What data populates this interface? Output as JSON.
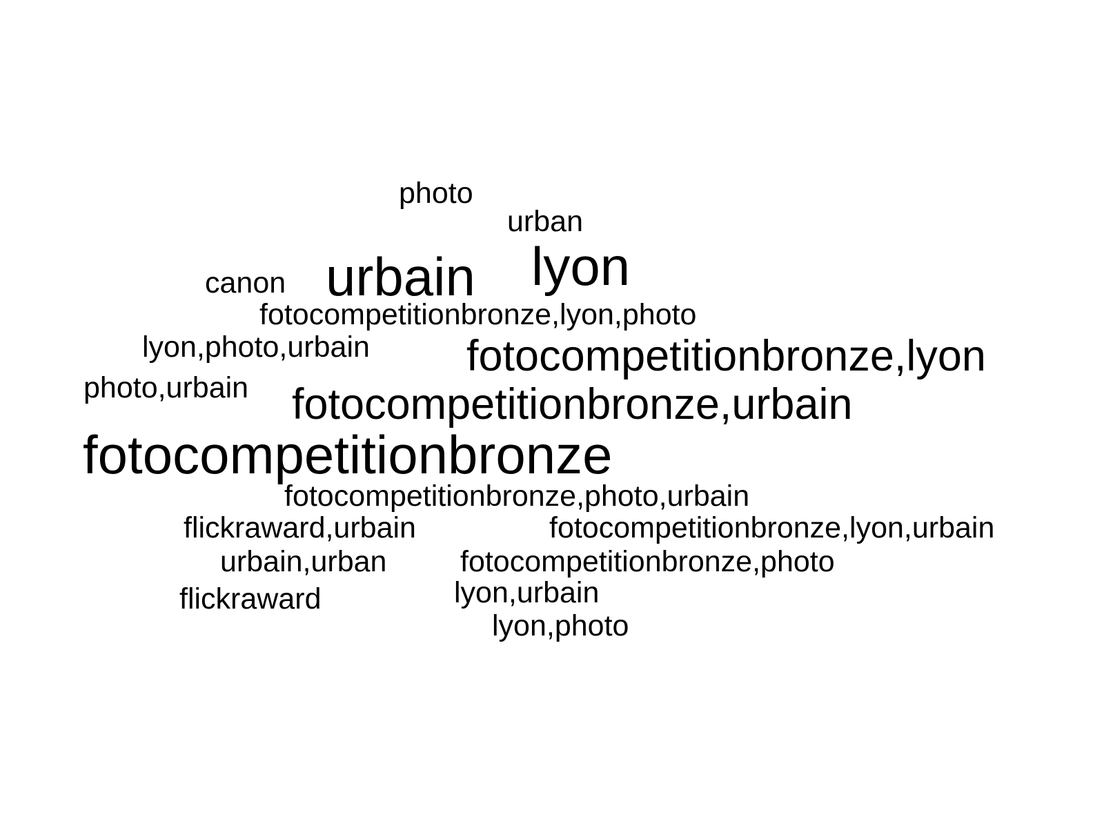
{
  "words": {
    "photo": "photo",
    "urban": "urban",
    "canon": "canon",
    "urbain": "urbain",
    "lyon": "lyon",
    "fotocompetitionbronze_lyon_photo": "fotocompetitionbronze,lyon,photo",
    "lyon_photo_urbain": "lyon,photo,urbain",
    "fotocompetitionbronze_lyon": "fotocompetitionbronze,lyon",
    "photo_urbain": "photo,urbain",
    "fotocompetitionbronze_urbain": "fotocompetitionbronze,urbain",
    "fotocompetitionbronze": "fotocompetitionbronze",
    "fotocompetitionbronze_photo_urbain": "fotocompetitionbronze,photo,urbain",
    "flickraward_urbain": "flickraward,urbain",
    "fotocompetitionbronze_lyon_urbain": "fotocompetitionbronze,lyon,urbain",
    "urbain_urban": "urbain,urban",
    "fotocompetitionbronze_photo": "fotocompetitionbronze,photo",
    "lyon_urbain": "lyon,urbain",
    "flickraward": "flickraward",
    "lyon_photo": "lyon,photo"
  },
  "colors": {
    "text": "#000000",
    "background": "#ffffff"
  }
}
